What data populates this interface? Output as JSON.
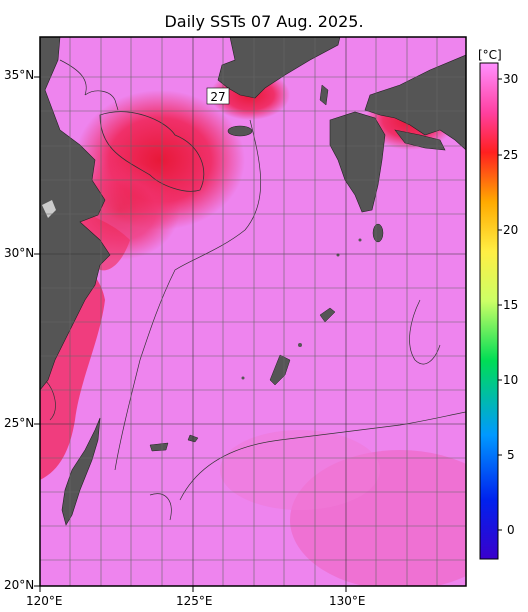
{
  "title": "Daily SSTs 07 Aug. 2025.",
  "map_labels": {
    "lat": [
      "35°N",
      "30°N",
      "25°N",
      "20°N"
    ],
    "lon": [
      "120°E",
      "125°E",
      "130°E"
    ],
    "contour_label": "27"
  },
  "colorbar": {
    "unit": "[°C]",
    "ticks": [
      "30",
      "25",
      "20",
      "15",
      "10",
      "5",
      "0"
    ],
    "range": [
      -2,
      31
    ],
    "stops": [
      "#3a00cc",
      "#0022ee",
      "#0099ff",
      "#00dd55",
      "#ccff66",
      "#ffee44",
      "#ffaa00",
      "#ff2020",
      "#ff60c0",
      "#ff90ff"
    ]
  },
  "colors": {
    "ocean_warm": "#ee82ee",
    "ocean_hot": "#f03060",
    "land": "#555555"
  }
}
